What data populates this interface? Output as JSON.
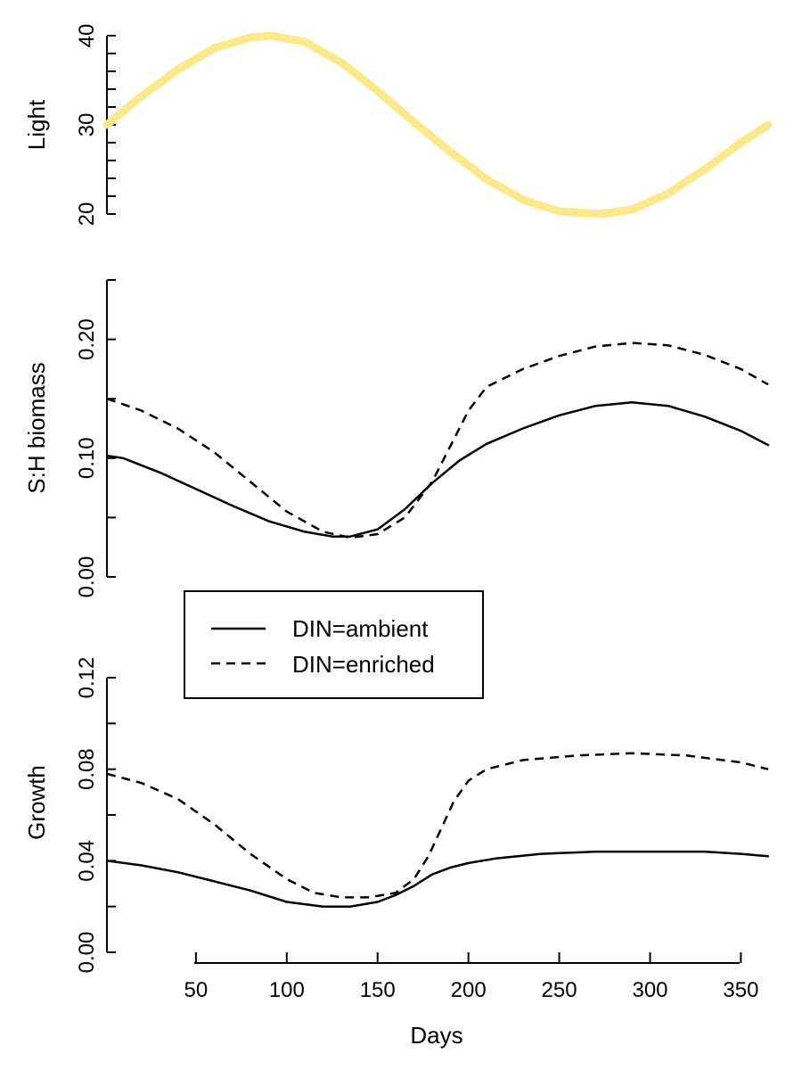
{
  "chart_data": {
    "type": "line",
    "xlabel": "Days",
    "xlim": [
      1,
      365
    ],
    "x_ticks": [
      "50",
      "100",
      "150",
      "200",
      "250",
      "300",
      "350"
    ],
    "panels": [
      {
        "ylabel": "Light",
        "ylim": [
          20,
          40
        ],
        "y_ticks": [
          "20",
          "30",
          "40"
        ],
        "series": [
          {
            "line_color": "#fce98a",
            "style": "solid",
            "x": [
              1,
              20,
              40,
              60,
              80,
              91,
              110,
              130,
              150,
              170,
              190,
              210,
              230,
              250,
              273,
              290,
              310,
              330,
              350,
              365
            ],
            "y": [
              30.0,
              33.2,
              36.2,
              38.6,
              39.8,
              40.0,
              39.3,
              37.0,
              33.8,
              30.3,
              27.0,
              23.9,
              21.6,
              20.3,
              20.0,
              20.5,
              22.3,
              25.0,
              28.0,
              30.0
            ]
          }
        ]
      },
      {
        "ylabel": "S:H biomass",
        "ylim": [
          0.0,
          0.25
        ],
        "y_ticks": [
          "0.00",
          "0.10",
          "0.20"
        ],
        "series": [
          {
            "name": "DIN=ambient",
            "style": "solid",
            "x": [
              1,
              10,
              30,
              50,
              70,
              90,
              110,
              125,
              135,
              150,
              165,
              180,
              195,
              210,
              230,
              250,
              270,
              290,
              310,
              330,
              350,
              365
            ],
            "y": [
              0.102,
              0.1,
              0.088,
              0.074,
              0.06,
              0.047,
              0.038,
              0.034,
              0.034,
              0.04,
              0.057,
              0.079,
              0.098,
              0.112,
              0.125,
              0.136,
              0.144,
              0.147,
              0.144,
              0.135,
              0.123,
              0.111
            ]
          },
          {
            "name": "DIN=enriched",
            "style": "dashed",
            "x": [
              1,
              20,
              40,
              60,
              80,
              100,
              120,
              135,
              150,
              165,
              180,
              190,
              200,
              210,
              230,
              250,
              270,
              290,
              310,
              330,
              350,
              365
            ],
            "y": [
              0.15,
              0.14,
              0.125,
              0.105,
              0.08,
              0.055,
              0.038,
              0.033,
              0.036,
              0.05,
              0.08,
              0.11,
              0.14,
              0.16,
              0.175,
              0.186,
              0.194,
              0.197,
              0.195,
              0.187,
              0.175,
              0.162
            ]
          }
        ]
      },
      {
        "ylabel": "Growth",
        "ylim": [
          0.0,
          0.12
        ],
        "y_ticks": [
          "0.00",
          "0.04",
          "0.08",
          "0.12"
        ],
        "series": [
          {
            "name": "DIN=ambient",
            "style": "solid",
            "x": [
              1,
              20,
              40,
              60,
              80,
              100,
              120,
              135,
              150,
              160,
              170,
              180,
              190,
              200,
              215,
              240,
              270,
              300,
              330,
              350,
              365
            ],
            "y": [
              0.04,
              0.038,
              0.035,
              0.031,
              0.027,
              0.022,
              0.02,
              0.02,
              0.022,
              0.025,
              0.029,
              0.034,
              0.037,
              0.039,
              0.041,
              0.043,
              0.044,
              0.044,
              0.044,
              0.043,
              0.042
            ]
          },
          {
            "name": "DIN=enriched",
            "style": "dashed",
            "x": [
              1,
              20,
              40,
              60,
              80,
              100,
              115,
              130,
              145,
              160,
              170,
              178,
              185,
              192,
              200,
              210,
              230,
              260,
              290,
              320,
              350,
              365
            ],
            "y": [
              0.078,
              0.074,
              0.067,
              0.056,
              0.043,
              0.032,
              0.026,
              0.024,
              0.024,
              0.026,
              0.032,
              0.042,
              0.054,
              0.066,
              0.075,
              0.08,
              0.084,
              0.086,
              0.087,
              0.086,
              0.083,
              0.08
            ]
          }
        ]
      }
    ],
    "legend": {
      "placement": "top-left of Growth panel",
      "entries": [
        {
          "label": "DIN=ambient",
          "style": "solid"
        },
        {
          "label": "DIN=enriched",
          "style": "dashed"
        }
      ]
    }
  }
}
